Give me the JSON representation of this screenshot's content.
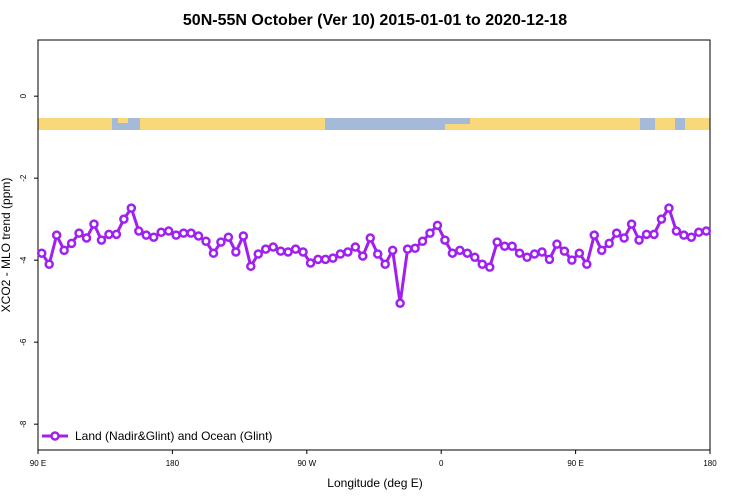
{
  "chart_data": {
    "type": "line",
    "title": "50N-55N October (Ver 10)   2015-01-01 to 2020-12-18",
    "x_label": "Longitude (deg E)",
    "y_label": "XCO2 - MLO trend (ppm)",
    "x": [
      92.5,
      97.5,
      102.5,
      107.5,
      112.5,
      117.5,
      122.5,
      127.5,
      132.5,
      137.5,
      142.5,
      147.5,
      152.5,
      157.5,
      162.5,
      167.5,
      172.5,
      177.5,
      182.5,
      187.5,
      192.5,
      197.5,
      202.5,
      207.5,
      212.5,
      217.5,
      222.5,
      227.5,
      232.5,
      237.5,
      242.5,
      247.5,
      252.5,
      257.5,
      262.5,
      267.5,
      272.5,
      277.5,
      282.5,
      287.5,
      292.5,
      297.5,
      302.5,
      307.5,
      312.5,
      317.5,
      322.5,
      327.5,
      332.5,
      337.5,
      342.5,
      347.5,
      352.5,
      357.5,
      362.5,
      367.5,
      372.5,
      377.5,
      382.5,
      387.5,
      392.5,
      397.5,
      402.5,
      407.5,
      412.5,
      417.5,
      422.5,
      427.5,
      432.5,
      437.5,
      442.5,
      447.5,
      452.5,
      457.5,
      462.5,
      467.5,
      472.5,
      477.5,
      482.5,
      487.5,
      492.5,
      497.5,
      502.5,
      507.5,
      512.5,
      517.5,
      522.5,
      527.5,
      532.5,
      537.5
    ],
    "series": [
      {
        "name": "Land (Nadir&Glint) and Ocean (Glint)",
        "color": "#a020f0",
        "values": [
          -3.83,
          -4.1,
          -3.39,
          -3.76,
          -3.59,
          -3.34,
          -3.46,
          -3.12,
          -3.51,
          -3.37,
          -3.37,
          -3.0,
          -2.73,
          -3.29,
          -3.39,
          -3.44,
          -3.32,
          -3.29,
          -3.39,
          -3.34,
          -3.34,
          -3.41,
          -3.54,
          -3.83,
          -3.56,
          -3.44,
          -3.8,
          -3.41,
          -4.15,
          -3.85,
          -3.73,
          -3.68,
          -3.78,
          -3.8,
          -3.73,
          -3.8,
          -4.07,
          -3.98,
          -3.98,
          -3.95,
          -3.85,
          -3.8,
          -3.68,
          -3.9,
          -3.46,
          -3.85,
          -4.1,
          -3.76,
          -5.05,
          -3.73,
          -3.71,
          -3.54,
          -3.34,
          -3.15,
          -3.51,
          -3.83,
          -3.76,
          -3.83,
          -3.93,
          -4.1,
          -4.17,
          -3.56,
          -3.66,
          -3.66,
          -3.83,
          -3.93,
          -3.85,
          -3.8,
          -3.98,
          -3.61,
          -3.78,
          -4.0,
          -3.83,
          -4.1,
          -3.39,
          -3.76,
          -3.59,
          -3.34,
          -3.46,
          -3.12,
          -3.51,
          -3.37,
          -3.37,
          -3.0,
          -2.73,
          -3.29,
          -3.39,
          -3.44,
          -3.32,
          -3.29
        ]
      }
    ],
    "xlim": [
      90,
      540
    ],
    "xticks": [
      {
        "value": 90,
        "label": "90 E"
      },
      180,
      {
        "value": 270,
        "label": "90 W"
      },
      {
        "value": 360,
        "label": "0"
      },
      {
        "value": 450,
        "label": "90 E"
      },
      180
    ],
    "ylim": [
      -8.63,
      1.37
    ],
    "yticks": [
      0,
      -2,
      -4,
      -6,
      -8
    ],
    "legend": "bottom-left"
  }
}
